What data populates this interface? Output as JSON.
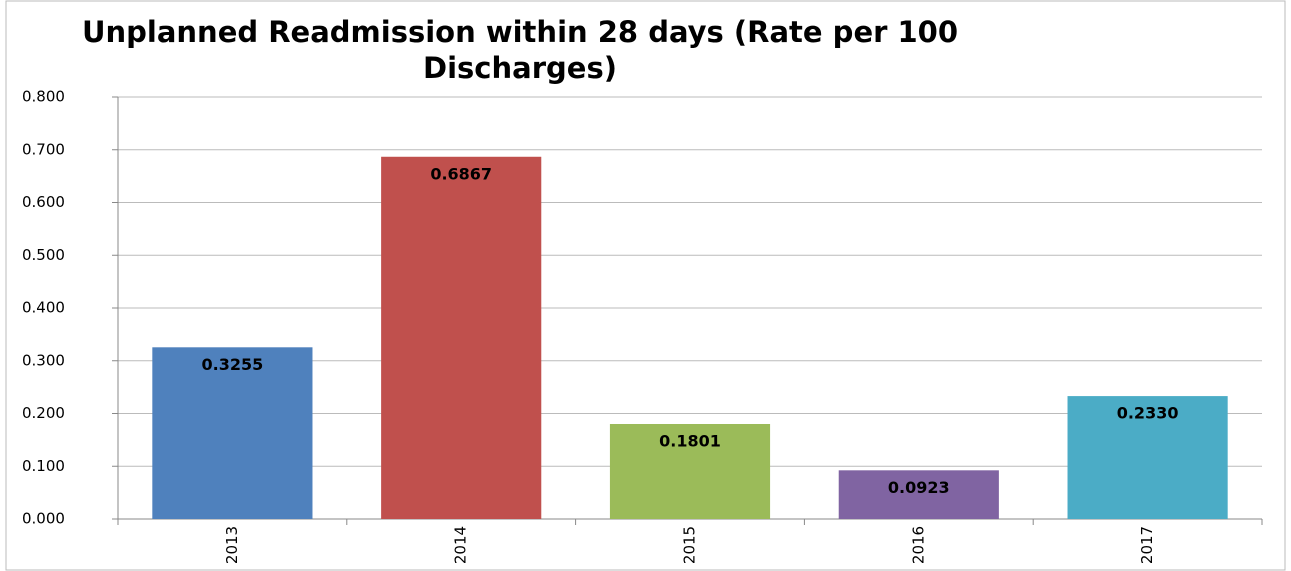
{
  "chart_data": {
    "type": "bar",
    "title": "Unplanned Readmission within 28 days (Rate per 100 Discharges)",
    "categories": [
      "2013",
      "2014",
      "2015",
      "2016",
      "2017"
    ],
    "values": [
      0.3255,
      0.6867,
      0.1801,
      0.0923,
      0.233
    ],
    "value_labels": [
      "0.3255",
      "0.6867",
      "0.1801",
      "0.0923",
      "0.2330"
    ],
    "colors": [
      "#4f81bd",
      "#c0504d",
      "#9bbb59",
      "#8064a2",
      "#4bacc6"
    ],
    "ylim": [
      0,
      0.8
    ],
    "yticks": [
      {
        "value": 0,
        "label": "0.000"
      },
      {
        "value": 0.1,
        "label": "0.100"
      },
      {
        "value": 0.2,
        "label": "0.200"
      },
      {
        "value": 0.3,
        "label": "0.300"
      },
      {
        "value": 0.4,
        "label": "0.400"
      },
      {
        "value": 0.5,
        "label": "0.500"
      },
      {
        "value": 0.6,
        "label": "0.600"
      },
      {
        "value": 0.7,
        "label": "0.700"
      },
      {
        "value": 0.8,
        "label": "0.800"
      }
    ],
    "grid": true
  }
}
